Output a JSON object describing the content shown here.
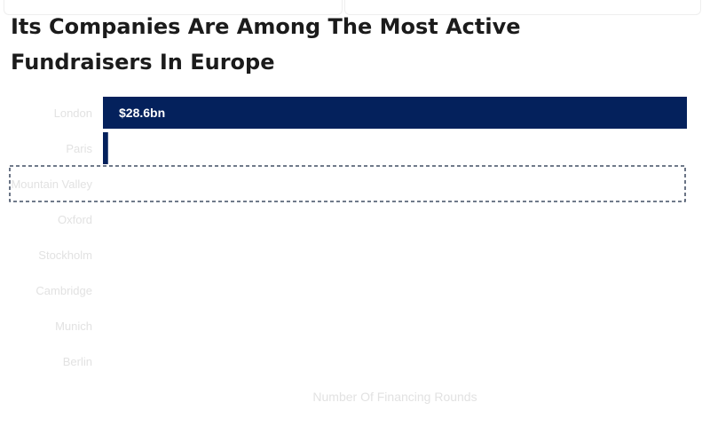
{
  "page": {
    "title": "Its Companies Are Among The Most Active Fundraisers In Europe"
  },
  "colors": {
    "bar": "#04215c",
    "label": "#e2e2e2",
    "highlight_border": "#1b2a44"
  },
  "chart_data": {
    "type": "bar",
    "orientation": "horizontal",
    "title": "Its Companies Are Among The Most Active Fundraisers In Europe",
    "xlabel": "Number Of Financing Rounds",
    "ylabel": "",
    "categories": [
      "London",
      "Paris",
      "Mountain Valley",
      "Oxford",
      "Stockholm",
      "Cambridge",
      "Munich",
      "Berlin"
    ],
    "values": [
      28.6,
      0.25,
      0,
      0,
      0,
      0,
      0,
      0
    ],
    "data_labels": [
      "$28.6bn",
      "",
      "",
      "",
      "",
      "",
      "",
      ""
    ],
    "xlim": [
      0,
      28.6
    ],
    "highlighted_category": "Mountain Valley",
    "grid": false,
    "legend": "none"
  }
}
